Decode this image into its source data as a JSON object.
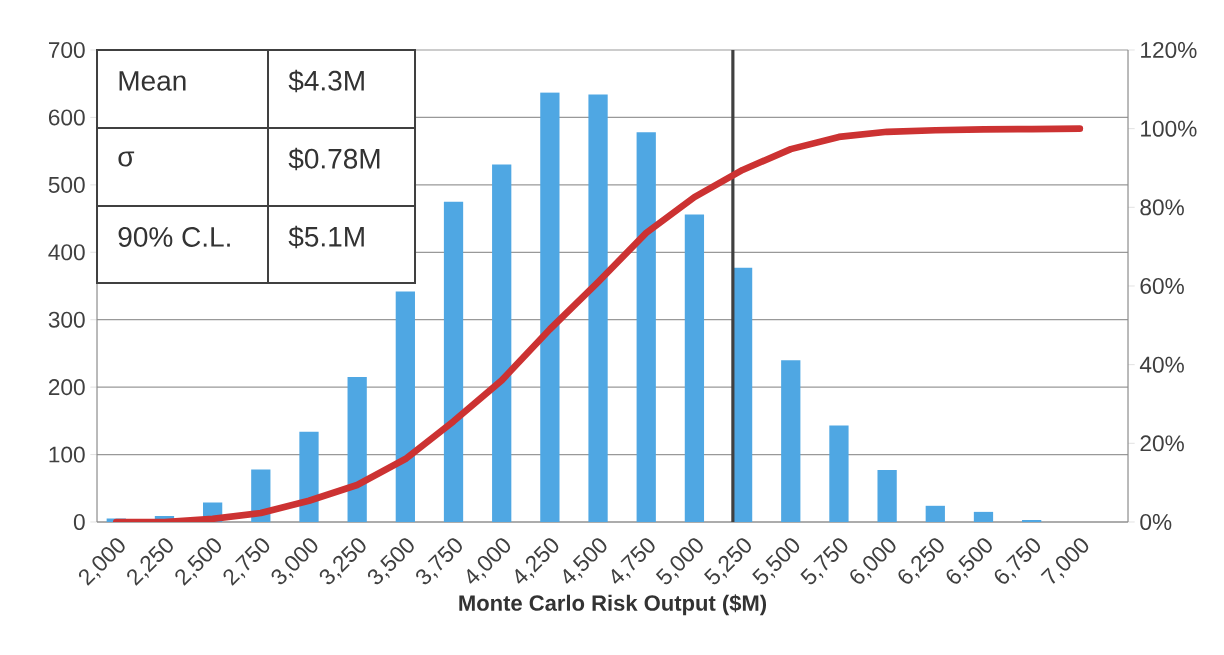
{
  "chart_data": {
    "type": "bar",
    "xlabel": "Monte Carlo Risk Output ($M)",
    "x": [
      2000,
      2250,
      2500,
      2750,
      3000,
      3250,
      3500,
      3750,
      4000,
      4250,
      4500,
      4750,
      5000,
      5250,
      5500,
      5750,
      6000,
      6250,
      6500,
      6750,
      7000
    ],
    "series": [
      {
        "color": "#4fa7e3",
        "values": [
          5,
          9,
          29,
          78,
          134,
          215,
          342,
          475,
          530,
          637,
          634,
          578,
          456,
          377,
          240,
          143,
          77,
          24,
          15,
          3,
          0
        ]
      },
      {
        "type": "line",
        "axis": "y2",
        "color": "#cc3232",
        "values": [
          0,
          0,
          0.8,
          2.3,
          5.4,
          9.4,
          16,
          25.6,
          36,
          49,
          61,
          73.5,
          82.6,
          89.5,
          94.8,
          97.9,
          99.2,
          99.6,
          99.8,
          99.9,
          100
        ]
      }
    ],
    "xlim": [
      1900,
      7250
    ],
    "xticks": [
      {
        "value": 2000,
        "label": "2,000"
      },
      {
        "value": 2250,
        "label": "2,250"
      },
      {
        "value": 2500,
        "label": "2,500"
      },
      {
        "value": 2750,
        "label": "2,750"
      },
      {
        "value": 3000,
        "label": "3,000"
      },
      {
        "value": 3250,
        "label": "3,250"
      },
      {
        "value": 3500,
        "label": "3,500"
      },
      {
        "value": 3750,
        "label": "3,750"
      },
      {
        "value": 4000,
        "label": "4,000"
      },
      {
        "value": 4250,
        "label": "4,250"
      },
      {
        "value": 4500,
        "label": "4,500"
      },
      {
        "value": 4750,
        "label": "4,750"
      },
      {
        "value": 5000,
        "label": "5,000"
      },
      {
        "value": 5250,
        "label": "5,250"
      },
      {
        "value": 5500,
        "label": "5,500"
      },
      {
        "value": 5750,
        "label": "5,750"
      },
      {
        "value": 6000,
        "label": "6,000"
      },
      {
        "value": 6250,
        "label": "6,250"
      },
      {
        "value": 6500,
        "label": "6,500"
      },
      {
        "value": 6750,
        "label": "6,750"
      },
      {
        "value": 7000,
        "label": "7,000"
      }
    ],
    "ylim": [
      0,
      700
    ],
    "yticks": [
      0,
      100,
      200,
      300,
      400,
      500,
      600,
      700
    ],
    "y2lim": [
      0,
      120
    ],
    "y2ticks": [
      {
        "value": 0,
        "label": "0%"
      },
      {
        "value": 20,
        "label": "20%"
      },
      {
        "value": 40,
        "label": "40%"
      },
      {
        "value": 60,
        "label": "60%"
      },
      {
        "value": 80,
        "label": "80%"
      },
      {
        "value": 100,
        "label": "100%"
      },
      {
        "value": 120,
        "label": "120%"
      }
    ],
    "grid": "y",
    "ref_lines": [
      {
        "axis": "x",
        "value": 5200,
        "color": "#404040"
      }
    ],
    "annotations": [
      "Mean",
      "$4.3M",
      "σ",
      "$0.78M",
      "90% C.L.",
      "$5.1M"
    ]
  }
}
